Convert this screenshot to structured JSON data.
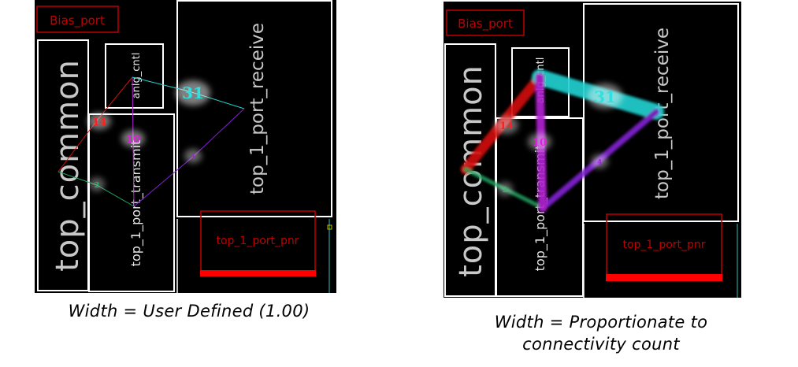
{
  "colors": {
    "background": "#000000",
    "block_border": "#ffffff",
    "port_border": "#c00000",
    "port_text": "#c00000",
    "port_bar": "#ff0000",
    "net_14": "#d01010",
    "net_2": "#20a060",
    "net_10": "#b020d0",
    "net_31": "#20d0d0",
    "net_4": "#8020d0"
  },
  "panels": [
    {
      "id": "left",
      "caption": "Width = User Defined (1.00)",
      "blocks": {
        "bias_port": "Bias_port",
        "top_common": "top_common",
        "anlg_cntl": "anlg_cntl",
        "top_1_port_transmit": "top_1_port_transmit",
        "top_1_port_receive": "top_1_port_receive",
        "top_1_port_pnr": "top_1_port_pnr"
      },
      "flylines": [
        {
          "net": "14",
          "label": "14",
          "weight": 14
        },
        {
          "net": "2",
          "label": "2",
          "weight": 2
        },
        {
          "net": "10",
          "label": "10",
          "weight": 10
        },
        {
          "net": "31",
          "label": "31",
          "weight": 31
        },
        {
          "net": "4",
          "label": "4",
          "weight": 4
        }
      ]
    },
    {
      "id": "right",
      "caption_line1": "Width = Proportionate to",
      "caption_line2": "connectivity count",
      "blocks": {
        "bias_port": "Bias_port",
        "top_common": "top_common",
        "anlg_cntl": "anlg_cntl",
        "top_1_port_transmit": "top_1_port_transmit",
        "top_1_port_receive": "top_1_port_receive",
        "top_1_port_pnr": "top_1_port_pnr"
      },
      "flylines": [
        {
          "net": "14",
          "label": "14",
          "weight": 14
        },
        {
          "net": "2",
          "label": "2",
          "weight": 2
        },
        {
          "net": "10",
          "label": "10",
          "weight": 10
        },
        {
          "net": "31",
          "label": "31",
          "weight": 31
        },
        {
          "net": "4",
          "label": "4",
          "weight": 4
        }
      ]
    }
  ]
}
